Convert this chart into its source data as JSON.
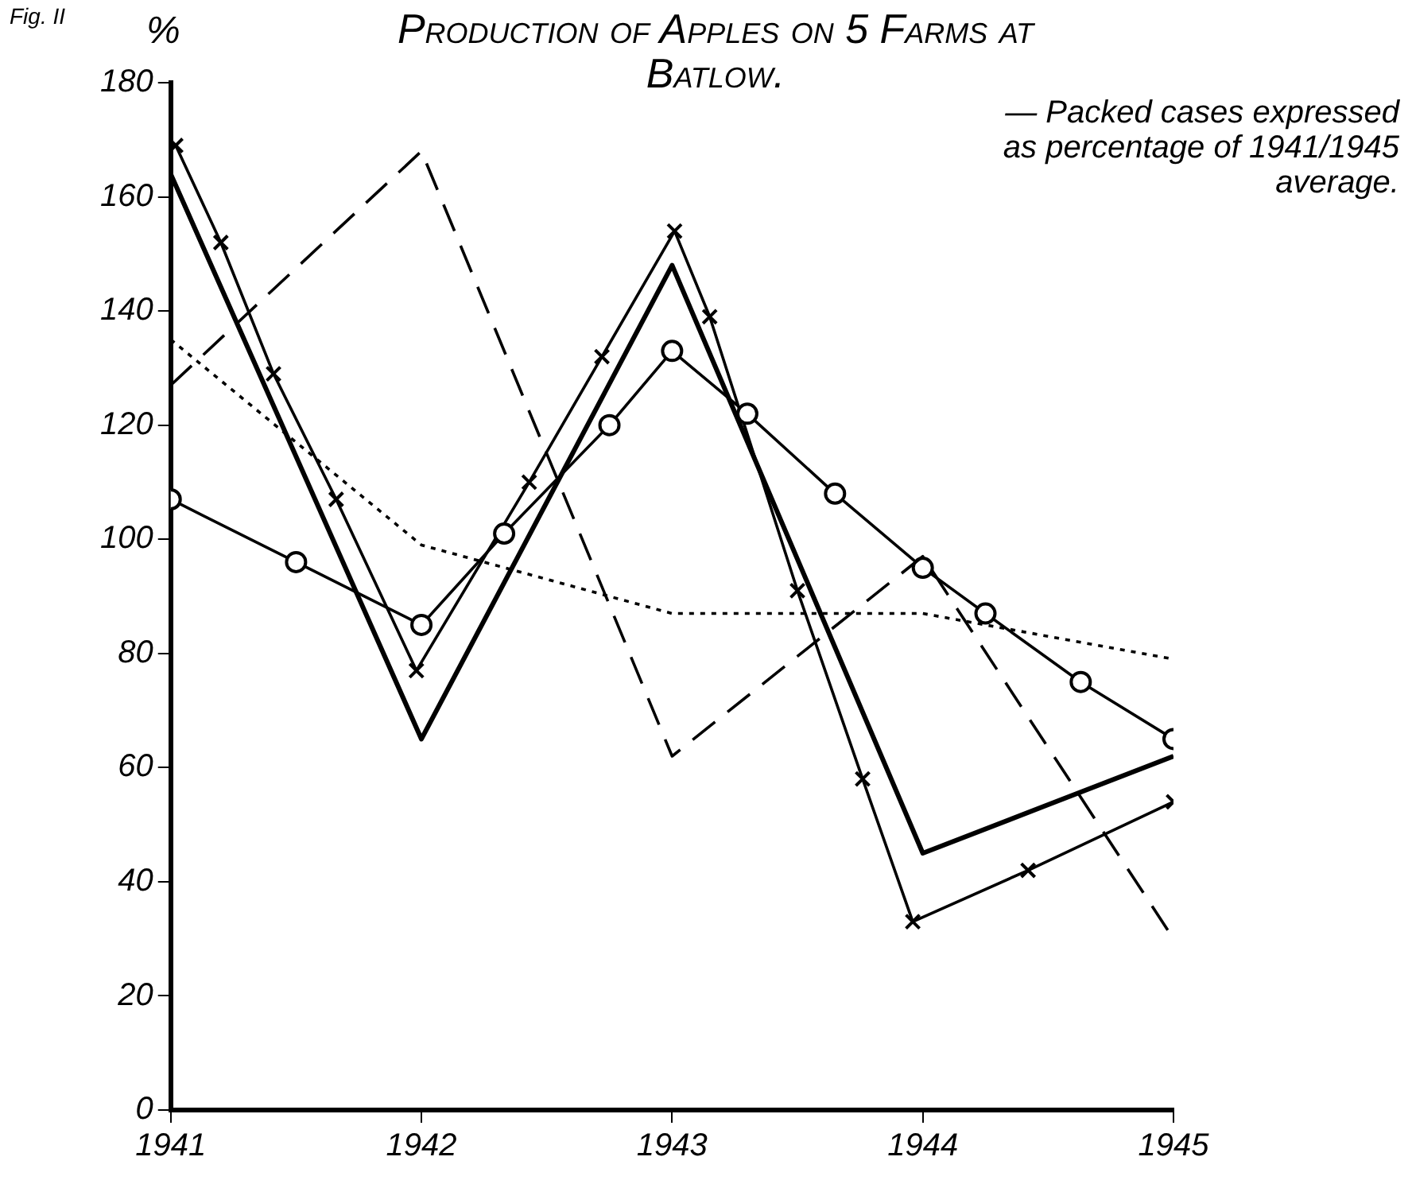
{
  "chart_data": {
    "type": "line",
    "title": "Production of Apples on 5 Farms at Batlow.",
    "subtitle": "— Packed cases expressed as percentage of 1941/1945 average.",
    "ylabel": "%",
    "annotations": [
      "Fig. II"
    ],
    "xlim": [
      1941,
      1945
    ],
    "xticks": [
      1941,
      1942,
      1943,
      1944,
      1945
    ],
    "ylim": [
      0,
      180
    ],
    "yticks": [
      0,
      20,
      40,
      60,
      80,
      100,
      120,
      140,
      160,
      180
    ],
    "grid": false,
    "legend": false,
    "series": [
      {
        "color": "#000000",
        "line_style": "solid",
        "marker": "none",
        "x": [
          1941,
          1942,
          1943,
          1944,
          1945
        ],
        "values": [
          164,
          65,
          148,
          45,
          62
        ]
      },
      {
        "color": "#000000",
        "line_style": "dashed",
        "marker": "none",
        "x": [
          1941,
          1942,
          1943,
          1944,
          1945
        ],
        "values": [
          127,
          168,
          62,
          97,
          30
        ]
      },
      {
        "color": "#000000",
        "line_style": "dotted",
        "marker": "none",
        "x": [
          1941,
          1942,
          1943,
          1944,
          1945
        ],
        "values": [
          135,
          99,
          87,
          87,
          79
        ]
      },
      {
        "color": "#000000",
        "line_style": "solid",
        "marker": "circle",
        "x": [
          1941,
          1941.5,
          1942,
          1942.33,
          1942.75,
          1943,
          1943.3,
          1943.65,
          1944,
          1944.25,
          1944.63,
          1945
        ],
        "values": [
          107,
          96,
          85,
          101,
          120,
          133,
          122,
          108,
          95,
          87,
          75,
          65
        ]
      },
      {
        "color": "#000000",
        "line_style": "solid",
        "marker": "cross",
        "x": [
          1941.02,
          1941.2,
          1941.41,
          1941.66,
          1941.98,
          1942.43,
          1942.72,
          1943.01,
          1943.15,
          1943.5,
          1943.76,
          1943.96,
          1944.42,
          1945
        ],
        "values": [
          169,
          152,
          129,
          107,
          77,
          110,
          132,
          154,
          139,
          91,
          58,
          33,
          42,
          54
        ]
      }
    ]
  }
}
